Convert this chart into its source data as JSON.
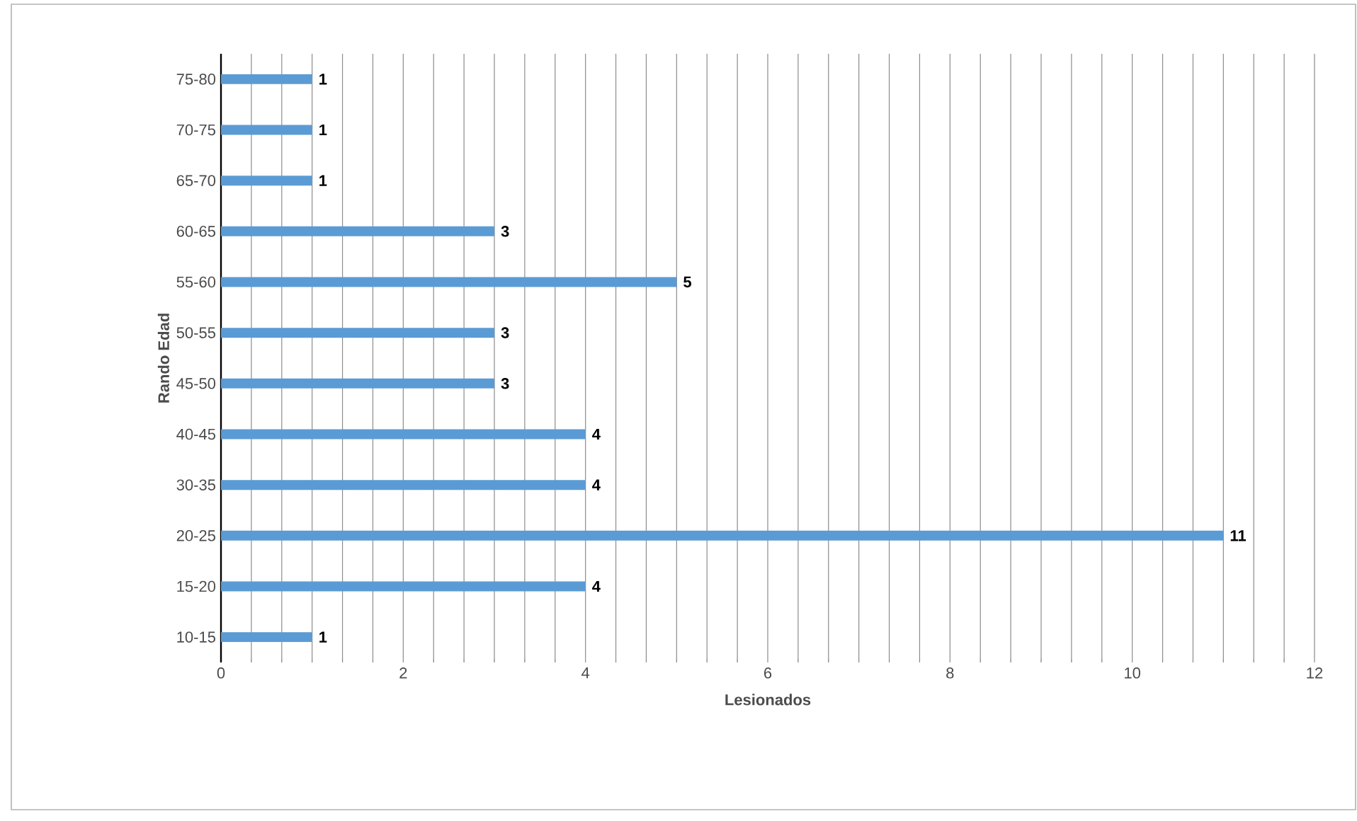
{
  "chart_data": {
    "type": "bar",
    "orientation": "horizontal",
    "xlabel": "Lesionados",
    "ylabel": "Rando Edad",
    "categories": [
      "75-80",
      "70-75",
      "65-70",
      "60-65",
      "55-60",
      "50-55",
      "45-50",
      "40-45",
      "30-35",
      "20-25",
      "15-20",
      "10-15"
    ],
    "values": [
      1,
      1,
      1,
      3,
      5,
      3,
      3,
      4,
      4,
      11,
      4,
      1
    ],
    "color": "#5b9bd5",
    "xlim": [
      0,
      12
    ],
    "xticks": [
      0,
      2,
      4,
      6,
      8,
      10,
      12
    ],
    "grid": "x",
    "data_labels": true
  }
}
